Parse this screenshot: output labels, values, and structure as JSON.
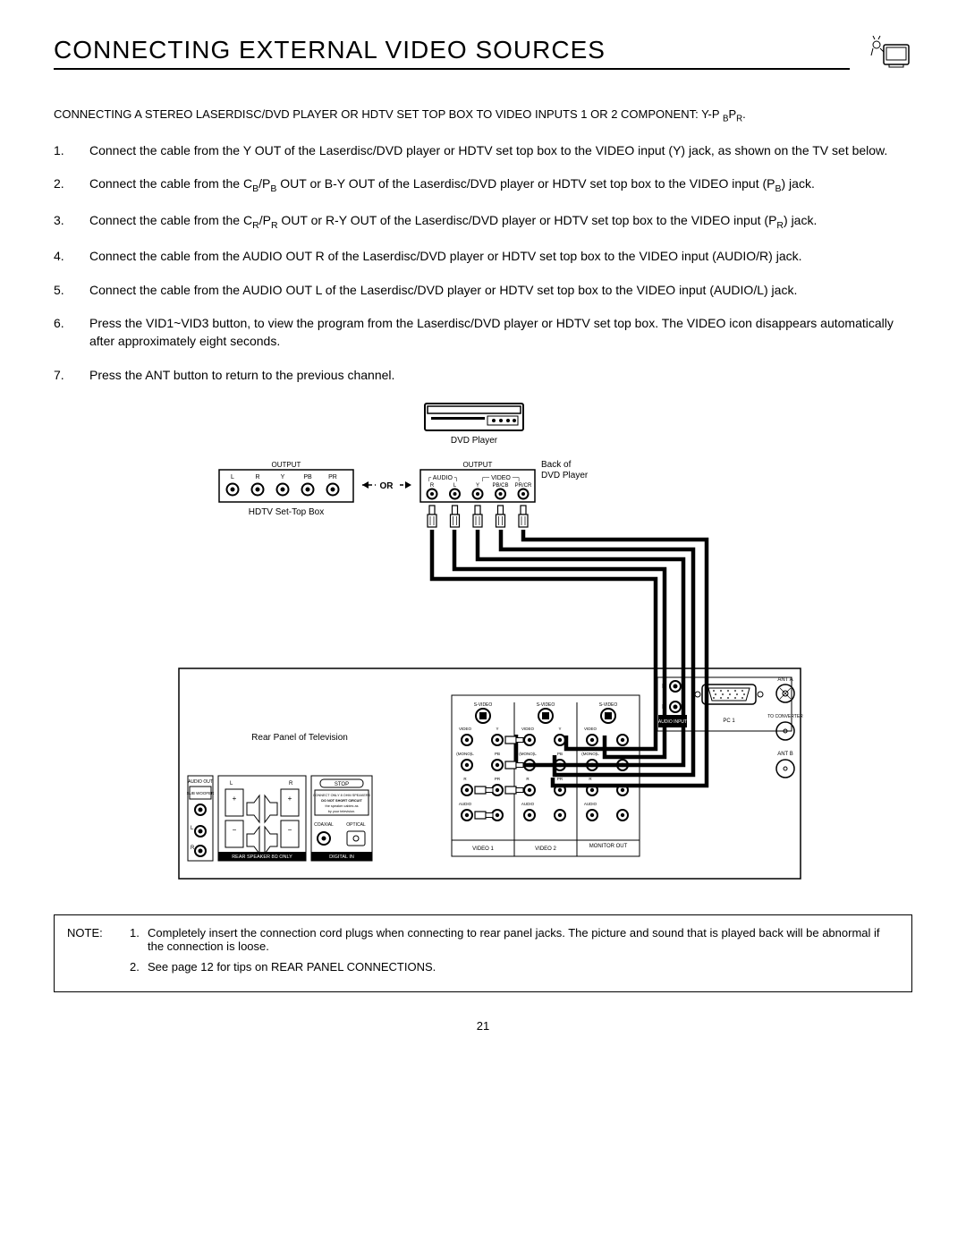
{
  "title": "CONNECTING EXTERNAL VIDEO SOURCES",
  "subtitle_a": "CONNECTING A STEREO LASERDISC/DVD PLAYER OR HDTV SET TOP BOX TO VIDEO INPUTS 1 OR 2 COMPONENT:  Y-P ",
  "subtitle_b": "B",
  "subtitle_c": "P",
  "subtitle_d": "R",
  "subtitle_e": ".",
  "steps": [
    {
      "n": "1.",
      "t": "Connect the cable from the Y OUT of the Laserdisc/DVD player or HDTV set top box to the VIDEO input (Y) jack, as shown on the TV set below."
    },
    {
      "n": "2.",
      "t": "Connect the cable from the C|B|/P|B| OUT or B-Y OUT of the Laserdisc/DVD player or HDTV set top box to the VIDEO input (P|B|) jack."
    },
    {
      "n": "3.",
      "t": "Connect the cable from the C|R|/P|R| OUT or R-Y OUT of the Laserdisc/DVD player or HDTV set top box to the VIDEO input (P|R|) jack."
    },
    {
      "n": "4.",
      "t": "Connect the cable from the AUDIO OUT R of the Laserdisc/DVD player or HDTV set top box to the VIDEO input (AUDIO/R) jack."
    },
    {
      "n": "5.",
      "t": "Connect the cable from the AUDIO OUT L of the Laserdisc/DVD player or HDTV set top box to the VIDEO input (AUDIO/L) jack."
    },
    {
      "n": "6.",
      "t": "Press the VID1~VID3 button, to view the program from the Laserdisc/DVD player or HDTV set top box.  The VIDEO icon disappears automatically after approximately eight seconds."
    },
    {
      "n": "7.",
      "t": "Press the ANT button to return to the previous channel."
    }
  ],
  "diagram": {
    "dvd_label": "DVD Player",
    "back_label_1": "Back of",
    "back_label_2": "DVD Player",
    "hdtv_label": "HDTV Set-Top Box",
    "or_label": "OR",
    "output_label": "OUTPUT",
    "audio_label": "AUDIO",
    "video_label": "VIDEO",
    "rear_panel_label": "Rear Panel of Television",
    "hdtv_jacks": [
      "L",
      "R",
      "Y",
      "PB",
      "PR"
    ],
    "dvd_jacks": [
      "R",
      "L",
      "Y",
      "PB/CB",
      "PR/CR"
    ],
    "tv_top_labels": [
      "S-VIDEO",
      "S-VIDEO",
      "S-VIDEO"
    ],
    "tv_row1": [
      "VIDEO",
      "Y",
      "VIDEO",
      "Y",
      "VIDEO"
    ],
    "tv_row2": [
      "(MONO)L",
      "PB",
      "(MONO)L",
      "PB",
      "(MONO)L"
    ],
    "tv_row3": [
      "R",
      "PR",
      "R",
      "PR",
      "R"
    ],
    "tv_row4": [
      "AUDIO",
      "",
      "AUDIO",
      "",
      "AUDIO"
    ],
    "tv_bottom": [
      "VIDEO 1",
      "VIDEO 2",
      "MONITOR OUT"
    ],
    "audio_out": "AUDIO OUT",
    "sub_woofer": "SUB WOOFER",
    "rear_speaker": "REAR SPEAKER 8Ω ONLY",
    "digital_in": "DIGITAL IN",
    "coaxial": "COAXIAL",
    "optical": "OPTICAL",
    "stop": "STOP",
    "audio_input": "AUDIO INPUT",
    "pc1": "PC 1",
    "ant_a": "ANT A",
    "ant_b": "ANT B",
    "to_converter": "TO CONVERTER",
    "lr": [
      "L",
      "R"
    ]
  },
  "note_label": "NOTE:",
  "notes": [
    {
      "n": "1.",
      "t": "Completely insert the connection cord plugs when connecting to rear panel jacks.  The picture and sound that is played back will be abnormal if the connection is loose."
    },
    {
      "n": "2.",
      "t": "See page 12 for tips on REAR PANEL CONNECTIONS."
    }
  ],
  "page_number": "21",
  "colors": {
    "stroke": "#000000",
    "bg": "#ffffff"
  }
}
